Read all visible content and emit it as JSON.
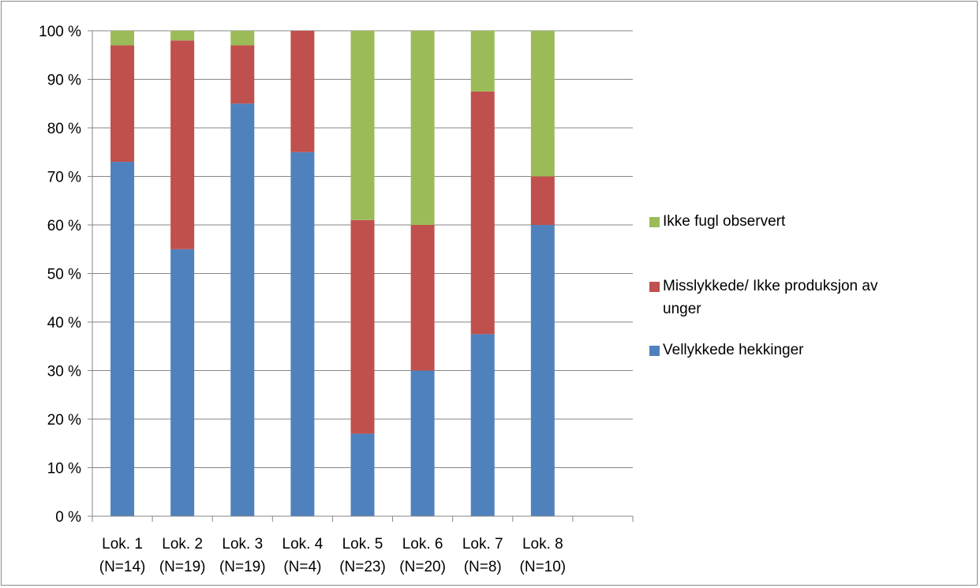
{
  "chart_data": {
    "type": "bar",
    "stacked": true,
    "percent": true,
    "categories": [
      [
        "Lok. 1",
        "(N=14)"
      ],
      [
        "Lok. 2",
        "(N=19)"
      ],
      [
        "Lok. 3",
        "(N=19)"
      ],
      [
        "Lok. 4",
        "(N=4)"
      ],
      [
        "Lok. 5",
        "(N=23)"
      ],
      [
        "Lok. 6",
        "(N=20)"
      ],
      [
        "Lok. 7",
        "(N=8)"
      ],
      [
        "Lok. 8",
        "(N=10)"
      ]
    ],
    "series": [
      {
        "name": "Vellykkede hekkinger",
        "color": "#4f81bd",
        "values": [
          73,
          55,
          85,
          75,
          17,
          30,
          37.5,
          60
        ]
      },
      {
        "name": "Misslykkede/ Ikke produksjon av unger",
        "color": "#c0504d",
        "values": [
          24,
          43,
          12,
          25,
          44,
          30,
          50,
          10
        ]
      },
      {
        "name": "Ikke fugl observert",
        "color": "#9bbb59",
        "values": [
          3,
          2,
          3,
          0,
          39,
          40,
          12.5,
          30
        ]
      }
    ],
    "ylim": [
      0,
      100
    ],
    "yticks": [
      "0 %",
      "10 %",
      "20 %",
      "30 %",
      "40 %",
      "50 %",
      "60 %",
      "70 %",
      "80 %",
      "90 %",
      "100 %"
    ],
    "legend_entries": [
      [
        "Ikke fugl observert"
      ],
      [
        "Misslykkede/ Ikke produksjon av",
        "unger"
      ],
      [
        "Vellykkede hekkinger"
      ]
    ],
    "grid": true,
    "legend_position": "right"
  }
}
